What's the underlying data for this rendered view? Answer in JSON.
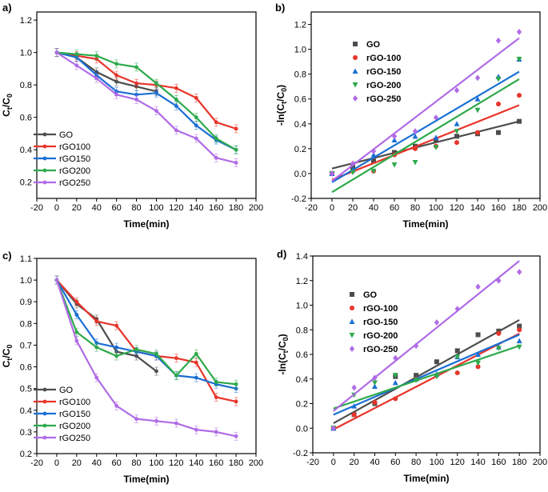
{
  "colors": {
    "GO": "#4d4d4d",
    "rGO100": "#e8342a",
    "rGO150": "#1a6fd4",
    "rGO200": "#2eaa4b",
    "rGO250": "#b06be6"
  },
  "chart_data": [
    {
      "id": "a",
      "panel_label": "a)",
      "type": "line",
      "xlabel": "Time(min)",
      "ylabel": "Ct/C0",
      "ylabel_kind": "ratio",
      "xlim": [
        -20,
        200
      ],
      "ylim": [
        0.1,
        1.25
      ],
      "xticks": [
        -20,
        0,
        20,
        40,
        60,
        80,
        100,
        120,
        140,
        160,
        180,
        200
      ],
      "yticks": [
        0.2,
        0.4,
        0.6,
        0.8,
        1.0,
        1.2
      ],
      "legend_position": "bottom-left",
      "legend_style": "line",
      "series": [
        {
          "name": "GO",
          "color_key": "GO",
          "x": [
            0,
            20,
            40,
            60,
            80,
            100
          ],
          "y": [
            1.0,
            0.97,
            0.88,
            0.82,
            0.79,
            0.76
          ]
        },
        {
          "name": "rGO100",
          "color_key": "rGO100",
          "x": [
            0,
            20,
            40,
            60,
            80,
            100,
            120,
            140,
            160,
            180
          ],
          "y": [
            1.0,
            0.98,
            0.96,
            0.86,
            0.81,
            0.8,
            0.78,
            0.72,
            0.57,
            0.53
          ]
        },
        {
          "name": "rGO150",
          "color_key": "rGO150",
          "x": [
            0,
            20,
            40,
            60,
            80,
            100,
            120,
            140,
            160,
            180
          ],
          "y": [
            1.0,
            0.97,
            0.86,
            0.76,
            0.74,
            0.75,
            0.67,
            0.55,
            0.46,
            0.4
          ]
        },
        {
          "name": "rGO200",
          "color_key": "rGO200",
          "x": [
            0,
            20,
            40,
            60,
            80,
            100,
            120,
            140,
            160,
            180
          ],
          "y": [
            1.0,
            0.99,
            0.98,
            0.93,
            0.91,
            0.81,
            0.71,
            0.6,
            0.47,
            0.4
          ]
        },
        {
          "name": "rGO250",
          "color_key": "rGO250",
          "x": [
            0,
            20,
            40,
            60,
            80,
            100,
            120,
            140,
            160,
            180
          ],
          "y": [
            1.0,
            0.92,
            0.84,
            0.74,
            0.71,
            0.64,
            0.52,
            0.47,
            0.35,
            0.32
          ]
        }
      ]
    },
    {
      "id": "b",
      "panel_label": "b)",
      "type": "scatter",
      "xlabel": "Time(min)",
      "ylabel": "-ln(Ct/C0)",
      "ylabel_kind": "ln",
      "xlim": [
        -20,
        200
      ],
      "ylim": [
        -0.2,
        1.3
      ],
      "xticks": [
        -20,
        0,
        20,
        40,
        60,
        80,
        100,
        120,
        140,
        160,
        180,
        200
      ],
      "yticks": [
        -0.2,
        0.0,
        0.2,
        0.4,
        0.6,
        0.8,
        1.0,
        1.2
      ],
      "legend_position": "top-left",
      "legend_style": "marker",
      "series": [
        {
          "name": "GO",
          "color_key": "GO",
          "marker": "square",
          "x": [
            0,
            20,
            40,
            60,
            80,
            100,
            120,
            140,
            160,
            180
          ],
          "y": [
            0.0,
            0.05,
            0.1,
            0.17,
            0.22,
            0.27,
            0.3,
            0.32,
            0.33,
            0.42
          ],
          "fit": [
            0.04,
            0.42
          ]
        },
        {
          "name": "rGO-100",
          "color_key": "rGO100",
          "marker": "circle",
          "x": [
            0,
            20,
            40,
            60,
            80,
            100,
            120,
            140,
            160,
            180
          ],
          "y": [
            0.0,
            0.02,
            0.02,
            0.15,
            0.2,
            0.22,
            0.25,
            0.33,
            0.56,
            0.63
          ],
          "fit": [
            -0.05,
            0.55
          ]
        },
        {
          "name": "rGO-150",
          "color_key": "rGO150",
          "marker": "triangle",
          "x": [
            0,
            20,
            40,
            60,
            80,
            100,
            120,
            140,
            160,
            180
          ],
          "y": [
            0.0,
            0.03,
            0.15,
            0.27,
            0.3,
            0.29,
            0.4,
            0.6,
            0.78,
            0.92
          ],
          "fit": [
            -0.07,
            0.82
          ]
        },
        {
          "name": "rGO-200",
          "color_key": "rGO200",
          "marker": "tri-down",
          "x": [
            0,
            20,
            40,
            60,
            80,
            100,
            120,
            140,
            160,
            180
          ],
          "y": [
            0.0,
            0.01,
            0.02,
            0.07,
            0.09,
            0.21,
            0.34,
            0.51,
            0.76,
            0.92
          ],
          "fit": [
            -0.15,
            0.76
          ]
        },
        {
          "name": "rGO-250",
          "color_key": "rGO250",
          "marker": "diamond",
          "x": [
            0,
            20,
            40,
            60,
            80,
            100,
            120,
            140,
            160,
            180
          ],
          "y": [
            0.0,
            0.08,
            0.18,
            0.3,
            0.34,
            0.45,
            0.67,
            0.77,
            1.07,
            1.14
          ],
          "fit": [
            -0.06,
            1.09
          ]
        }
      ]
    },
    {
      "id": "c",
      "panel_label": "c)",
      "type": "line",
      "xlabel": "Time(min)",
      "ylabel": "Ct/C0",
      "ylabel_kind": "ratio",
      "xlim": [
        -20,
        200
      ],
      "ylim": [
        0.2,
        1.1
      ],
      "xticks": [
        -20,
        0,
        20,
        40,
        60,
        80,
        100,
        120,
        140,
        160,
        180,
        200
      ],
      "yticks": [
        0.2,
        0.3,
        0.4,
        0.5,
        0.6,
        0.7,
        0.8,
        0.9,
        1.0,
        1.1
      ],
      "legend_position": "bottom-left",
      "legend_style": "line",
      "series": [
        {
          "name": "GO",
          "color_key": "GO",
          "x": [
            0,
            20,
            40,
            60,
            80,
            100
          ],
          "y": [
            1.0,
            0.89,
            0.82,
            0.67,
            0.65,
            0.58
          ]
        },
        {
          "name": "rGO100",
          "color_key": "rGO100",
          "x": [
            0,
            20,
            40,
            60,
            80,
            100,
            120,
            140,
            160,
            180
          ],
          "y": [
            1.0,
            0.9,
            0.81,
            0.79,
            0.67,
            0.65,
            0.64,
            0.62,
            0.46,
            0.44
          ]
        },
        {
          "name": "rGO150",
          "color_key": "rGO150",
          "x": [
            0,
            20,
            40,
            60,
            80,
            100,
            120,
            140,
            160,
            180
          ],
          "y": [
            1.0,
            0.84,
            0.71,
            0.69,
            0.67,
            0.65,
            0.56,
            0.55,
            0.52,
            0.5
          ]
        },
        {
          "name": "rGO200",
          "color_key": "rGO200",
          "x": [
            0,
            20,
            40,
            60,
            80,
            100,
            120,
            140,
            160,
            180
          ],
          "y": [
            1.0,
            0.76,
            0.69,
            0.65,
            0.68,
            0.66,
            0.56,
            0.66,
            0.53,
            0.52
          ]
        },
        {
          "name": "rGO250",
          "color_key": "rGO250",
          "x": [
            0,
            20,
            40,
            60,
            80,
            100,
            120,
            140,
            160,
            180
          ],
          "y": [
            1.0,
            0.72,
            0.55,
            0.42,
            0.36,
            0.35,
            0.34,
            0.31,
            0.3,
            0.28
          ]
        }
      ]
    },
    {
      "id": "d",
      "panel_label": "d)",
      "type": "scatter",
      "xlabel": "Time(min)",
      "ylabel": "-ln(Ct/C0)",
      "ylabel_kind": "ln",
      "xlim": [
        -20,
        200
      ],
      "ylim": [
        -0.2,
        1.4
      ],
      "xticks": [
        -20,
        0,
        20,
        40,
        60,
        80,
        100,
        120,
        140,
        160,
        180,
        200
      ],
      "yticks": [
        -0.2,
        0.0,
        0.2,
        0.4,
        0.6,
        0.8,
        1.0,
        1.2,
        1.4
      ],
      "legend_position": "top-left",
      "legend_style": "marker",
      "series": [
        {
          "name": "GO",
          "color_key": "GO",
          "marker": "square",
          "x": [
            0,
            20,
            40,
            60,
            80,
            100,
            120,
            140,
            160,
            180
          ],
          "y": [
            0.0,
            0.11,
            0.2,
            0.42,
            0.43,
            0.54,
            0.63,
            0.76,
            0.79,
            0.83
          ],
          "fit": [
            0.04,
            0.88
          ]
        },
        {
          "name": "rGO-100",
          "color_key": "rGO100",
          "marker": "circle",
          "x": [
            0,
            20,
            40,
            60,
            80,
            100,
            120,
            140,
            160,
            180
          ],
          "y": [
            0.0,
            0.11,
            0.21,
            0.24,
            0.4,
            0.43,
            0.45,
            0.5,
            0.77,
            0.8
          ],
          "fit": [
            -0.01,
            0.77
          ]
        },
        {
          "name": "rGO-150",
          "color_key": "rGO150",
          "marker": "triangle",
          "x": [
            0,
            20,
            40,
            60,
            80,
            100,
            120,
            140,
            160,
            180
          ],
          "y": [
            0.0,
            0.18,
            0.34,
            0.37,
            0.4,
            0.44,
            0.58,
            0.6,
            0.66,
            0.71
          ],
          "fit": [
            0.11,
            0.76
          ]
        },
        {
          "name": "rGO-200",
          "color_key": "rGO200",
          "marker": "tri-down",
          "x": [
            0,
            20,
            40,
            60,
            80,
            100,
            120,
            140,
            160,
            180
          ],
          "y": [
            0.0,
            0.27,
            0.37,
            0.43,
            0.39,
            0.42,
            0.58,
            0.53,
            0.65,
            0.66
          ],
          "fit": [
            0.16,
            0.67
          ]
        },
        {
          "name": "rGO-250",
          "color_key": "rGO250",
          "marker": "diamond",
          "x": [
            0,
            20,
            40,
            60,
            80,
            100,
            120,
            140,
            160,
            180
          ],
          "y": [
            0.0,
            0.33,
            0.41,
            0.57,
            0.67,
            0.86,
            0.97,
            1.15,
            1.2,
            1.27
          ],
          "fit": [
            0.14,
            1.36
          ]
        }
      ]
    }
  ]
}
